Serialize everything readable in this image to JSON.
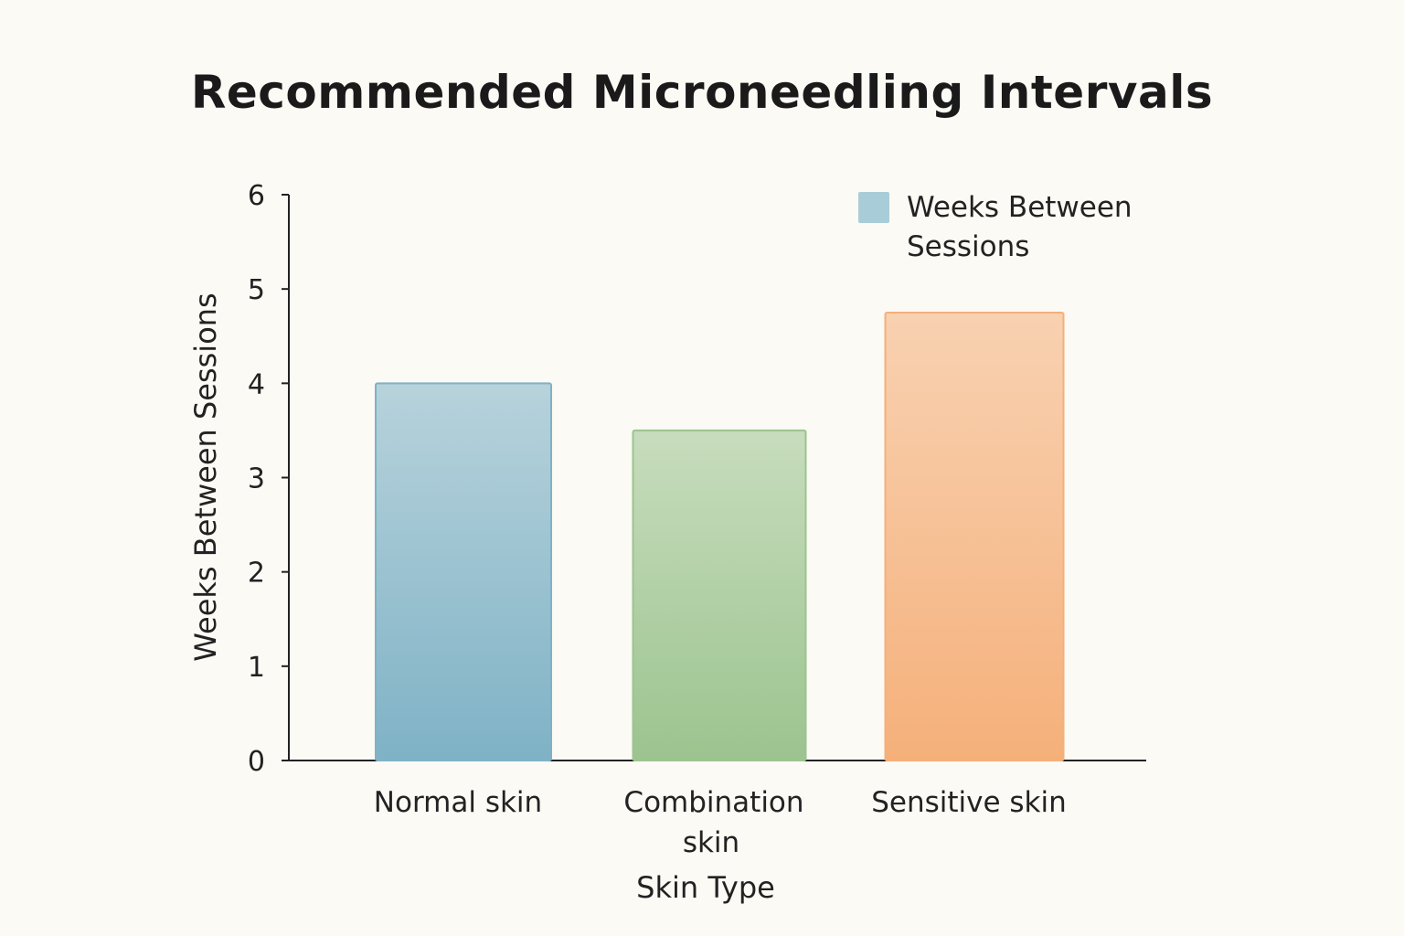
{
  "chart_data": {
    "type": "bar",
    "title": "Recommended Microneedling Intervals",
    "xlabel": "Skin Type",
    "ylabel": "Weeks Between Sessions",
    "categories": [
      [
        "Normal skin"
      ],
      [
        "Combination",
        "skin"
      ],
      [
        "Sensitive skin"
      ]
    ],
    "series": [
      {
        "name": "Weeks Between Sessions",
        "values": [
          4,
          3.5,
          4.75
        ]
      }
    ],
    "colors": [
      "#7fb2c6",
      "#9cc48f",
      "#f5b07a"
    ],
    "ylim": [
      0,
      6
    ],
    "yticks": [
      0,
      1,
      2,
      3,
      4,
      5,
      6
    ],
    "grid": false,
    "legend": {
      "position": "top-right",
      "label_lines": [
        "Weeks Between",
        "Sessions"
      ],
      "swatch_color": "#a9cdd8"
    }
  }
}
